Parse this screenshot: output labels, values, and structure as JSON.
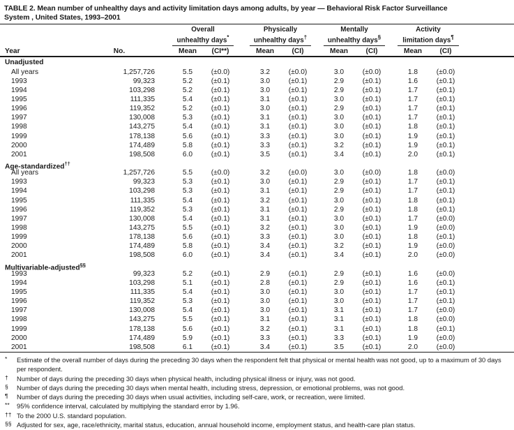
{
  "page": {
    "background": "#ffffff",
    "ink": "#1a1a1a"
  },
  "title": {
    "line1": "TABLE 2. Mean number of unhealthy days and activity limitation days among adults, by year — Behavioral Risk Factor Surveillance",
    "line2": "System , United States, 1993–2001"
  },
  "table": {
    "header": {
      "year": "Year",
      "no": "No.",
      "groups": [
        {
          "line1": "Overall",
          "line2": "unhealthy days",
          "marker": "*",
          "mean": "Mean",
          "ci": "(CI**)"
        },
        {
          "line1": "Physically",
          "line2": "unhealthy days",
          "marker": "†",
          "mean": "Mean",
          "ci": "(CI)"
        },
        {
          "line1": "Mentally",
          "line2": "unhealthy days",
          "marker": "§",
          "mean": "Mean",
          "ci": "(CI)"
        },
        {
          "line1": "Activity",
          "line2": "limitation days",
          "marker": "¶",
          "mean": "Mean",
          "ci": "(CI)"
        }
      ]
    },
    "sections": [
      {
        "label": "Unadjusted",
        "marker": "",
        "rows": [
          {
            "year": "All years",
            "no": "1,257,726",
            "values": [
              "5.5",
              "(±0.0)",
              "3.2",
              "(±0.0)",
              "3.0",
              "(±0.0)",
              "1.8",
              "(±0.0)"
            ]
          },
          {
            "year": "1993",
            "no": "99,323",
            "values": [
              "5.2",
              "(±0.1)",
              "3.0",
              "(±0.1)",
              "2.9",
              "(±0.1)",
              "1.6",
              "(±0.1)"
            ]
          },
          {
            "year": "1994",
            "no": "103,298",
            "values": [
              "5.2",
              "(±0.1)",
              "3.0",
              "(±0.1)",
              "2.9",
              "(±0.1)",
              "1.7",
              "(±0.1)"
            ]
          },
          {
            "year": "1995",
            "no": "111,335",
            "values": [
              "5.4",
              "(±0.1)",
              "3.1",
              "(±0.1)",
              "3.0",
              "(±0.1)",
              "1.7",
              "(±0.1)"
            ]
          },
          {
            "year": "1996",
            "no": "119,352",
            "values": [
              "5.2",
              "(±0.1)",
              "3.0",
              "(±0.1)",
              "2.9",
              "(±0.1)",
              "1.7",
              "(±0.1)"
            ]
          },
          {
            "year": "1997",
            "no": "130,008",
            "values": [
              "5.3",
              "(±0.1)",
              "3.1",
              "(±0.1)",
              "3.0",
              "(±0.1)",
              "1.7",
              "(±0.1)"
            ]
          },
          {
            "year": "1998",
            "no": "143,275",
            "values": [
              "5.4",
              "(±0.1)",
              "3.1",
              "(±0.1)",
              "3.0",
              "(±0.1)",
              "1.8",
              "(±0.1)"
            ]
          },
          {
            "year": "1999",
            "no": "178,138",
            "values": [
              "5.6",
              "(±0.1)",
              "3.3",
              "(±0.1)",
              "3.0",
              "(±0.1)",
              "1.9",
              "(±0.1)"
            ]
          },
          {
            "year": "2000",
            "no": "174,489",
            "values": [
              "5.8",
              "(±0.1)",
              "3.3",
              "(±0.1)",
              "3.2",
              "(±0.1)",
              "1.9",
              "(±0.1)"
            ]
          },
          {
            "year": "2001",
            "no": "198,508",
            "values": [
              "6.0",
              "(±0.1)",
              "3.5",
              "(±0.1)",
              "3.4",
              "(±0.1)",
              "2.0",
              "(±0.1)"
            ]
          }
        ]
      },
      {
        "label": "Age-standardized",
        "marker": "††",
        "rows": [
          {
            "year": "All years",
            "no": "1,257,726",
            "values": [
              "5.5",
              "(±0.0)",
              "3.2",
              "(±0.0)",
              "3.0",
              "(±0.0)",
              "1.8",
              "(±0.0)"
            ]
          },
          {
            "year": "1993",
            "no": "99,323",
            "values": [
              "5.3",
              "(±0.1)",
              "3.0",
              "(±0.1)",
              "2.9",
              "(±0.1)",
              "1.7",
              "(±0.1)"
            ]
          },
          {
            "year": "1994",
            "no": "103,298",
            "values": [
              "5.3",
              "(±0.1)",
              "3.1",
              "(±0.1)",
              "2.9",
              "(±0.1)",
              "1.7",
              "(±0.1)"
            ]
          },
          {
            "year": "1995",
            "no": "111,335",
            "values": [
              "5.4",
              "(±0.1)",
              "3.2",
              "(±0.1)",
              "3.0",
              "(±0.1)",
              "1.8",
              "(±0.1)"
            ]
          },
          {
            "year": "1996",
            "no": "119,352",
            "values": [
              "5.3",
              "(±0.1)",
              "3.1",
              "(±0.1)",
              "2.9",
              "(±0.1)",
              "1.8",
              "(±0.1)"
            ]
          },
          {
            "year": "1997",
            "no": "130,008",
            "values": [
              "5.4",
              "(±0.1)",
              "3.1",
              "(±0.1)",
              "3.0",
              "(±0.1)",
              "1.7",
              "(±0.0)"
            ]
          },
          {
            "year": "1998",
            "no": "143,275",
            "values": [
              "5.5",
              "(±0.1)",
              "3.2",
              "(±0.1)",
              "3.0",
              "(±0.1)",
              "1.9",
              "(±0.0)"
            ]
          },
          {
            "year": "1999",
            "no": "178,138",
            "values": [
              "5.6",
              "(±0.1)",
              "3.3",
              "(±0.1)",
              "3.0",
              "(±0.1)",
              "1.8",
              "(±0.1)"
            ]
          },
          {
            "year": "2000",
            "no": "174,489",
            "values": [
              "5.8",
              "(±0.1)",
              "3.4",
              "(±0.1)",
              "3.2",
              "(±0.1)",
              "1.9",
              "(±0.0)"
            ]
          },
          {
            "year": "2001",
            "no": "198,508",
            "values": [
              "6.0",
              "(±0.1)",
              "3.4",
              "(±0.1)",
              "3.4",
              "(±0.1)",
              "2.0",
              "(±0.0)"
            ]
          }
        ]
      },
      {
        "label": "Multivariable-adjusted",
        "marker": "§§",
        "rows": [
          {
            "year": "1993",
            "no": "99,323",
            "values": [
              "5.2",
              "(±0.1)",
              "2.9",
              "(±0.1)",
              "2.9",
              "(±0.1)",
              "1.6",
              "(±0.0)"
            ]
          },
          {
            "year": "1994",
            "no": "103,298",
            "values": [
              "5.1",
              "(±0.1)",
              "2.8",
              "(±0.1)",
              "2.9",
              "(±0.1)",
              "1.6",
              "(±0.1)"
            ]
          },
          {
            "year": "1995",
            "no": "111,335",
            "values": [
              "5.4",
              "(±0.1)",
              "3.0",
              "(±0.1)",
              "3.0",
              "(±0.1)",
              "1.7",
              "(±0.1)"
            ]
          },
          {
            "year": "1996",
            "no": "119,352",
            "values": [
              "5.3",
              "(±0.1)",
              "3.0",
              "(±0.1)",
              "3.0",
              "(±0.1)",
              "1.7",
              "(±0.1)"
            ]
          },
          {
            "year": "1997",
            "no": "130,008",
            "values": [
              "5.4",
              "(±0.1)",
              "3.0",
              "(±0.1)",
              "3.1",
              "(±0.1)",
              "1.7",
              "(±0.0)"
            ]
          },
          {
            "year": "1998",
            "no": "143,275",
            "values": [
              "5.5",
              "(±0.1)",
              "3.1",
              "(±0.1)",
              "3.1",
              "(±0.1)",
              "1.8",
              "(±0.0)"
            ]
          },
          {
            "year": "1999",
            "no": "178,138",
            "values": [
              "5.6",
              "(±0.1)",
              "3.2",
              "(±0.1)",
              "3.1",
              "(±0.1)",
              "1.8",
              "(±0.1)"
            ]
          },
          {
            "year": "2000",
            "no": "174,489",
            "values": [
              "5.9",
              "(±0.1)",
              "3.3",
              "(±0.1)",
              "3.3",
              "(±0.1)",
              "1.9",
              "(±0.0)"
            ]
          },
          {
            "year": "2001",
            "no": "198,508",
            "values": [
              "6.1",
              "(±0.1)",
              "3.4",
              "(±0.1)",
              "3.5",
              "(±0.1)",
              "2.0",
              "(±0.0)"
            ]
          }
        ]
      }
    ]
  },
  "footnotes": [
    {
      "marker": "*",
      "text": "Estimate of the overall number of days during the preceding 30 days when the respondent felt that physical or mental health was not good, up to a maximum of 30 days per respondent."
    },
    {
      "marker": "†",
      "text": "Number of days during the preceding 30 days when physical health, including physical illness or injury, was not good."
    },
    {
      "marker": "§",
      "text": "Number of days during the preceding 30 days when mental health, including stress, depression, or emotional problems, was not good."
    },
    {
      "marker": "¶",
      "text": "Number of days during the preceding 30 days when usual activities, including self-care, work, or recreation, were limited."
    },
    {
      "marker": "**",
      "text": "95% confidence interval, calculated by multiplying the standard error by 1.96."
    },
    {
      "marker": "††",
      "text": "To the 2000 U.S. standard population."
    },
    {
      "marker": "§§",
      "text": "Adjusted for sex, age, race/ethnicity, marital status, education, annual household income, employment status, and health-care plan status."
    }
  ]
}
